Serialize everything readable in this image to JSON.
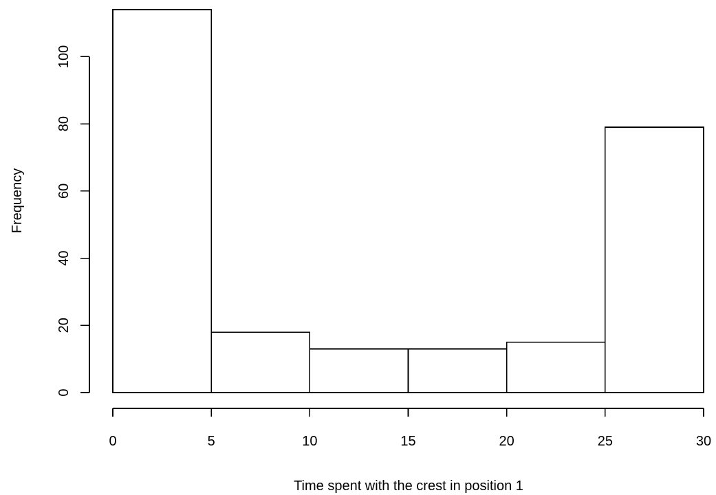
{
  "chart_data": {
    "type": "bar",
    "title": "",
    "xlabel": "Time spent with the crest in position 1",
    "ylabel": "Frequency",
    "bins": [
      {
        "from": 0,
        "to": 5,
        "count": 114
      },
      {
        "from": 5,
        "to": 10,
        "count": 18
      },
      {
        "from": 10,
        "to": 15,
        "count": 13
      },
      {
        "from": 15,
        "to": 20,
        "count": 13
      },
      {
        "from": 20,
        "to": 25,
        "count": 15
      },
      {
        "from": 25,
        "to": 30,
        "count": 79
      }
    ],
    "xlim": [
      0,
      30
    ],
    "ylim": [
      0,
      114
    ],
    "x_ticks": [
      0,
      5,
      10,
      15,
      20,
      25,
      30
    ],
    "x_tick_labels": [
      "0",
      "5",
      "10",
      "15",
      "20",
      "25",
      "30"
    ],
    "y_ticks": [
      0,
      20,
      40,
      60,
      80,
      100
    ],
    "y_tick_labels": [
      "0",
      "20",
      "40",
      "60",
      "80",
      "100"
    ],
    "grid": false,
    "legend": "none",
    "colors": {
      "bar_fill": "#ffffff",
      "bar_stroke": "#000000",
      "axis": "#000000",
      "background": "#ffffff"
    }
  }
}
